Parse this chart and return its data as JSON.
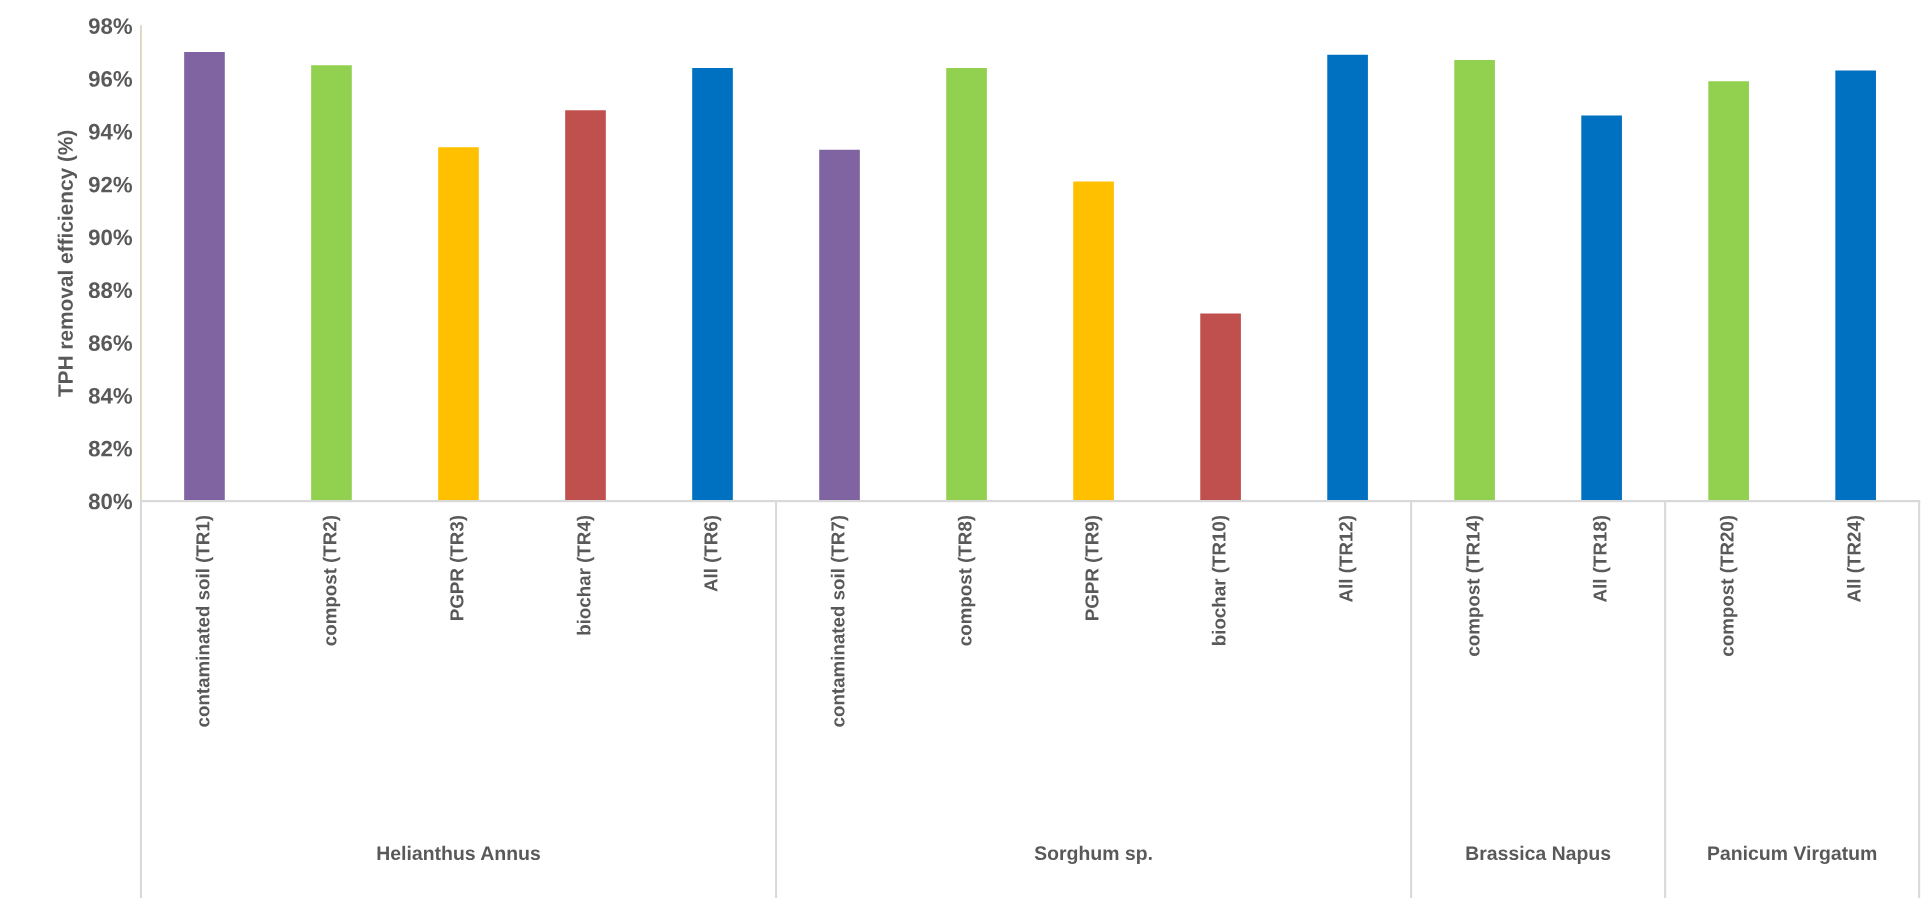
{
  "chart_data": {
    "type": "bar",
    "ylabel": "TPH removal efficiency (%)",
    "categories": [
      "contaminated soil (TR1)",
      "compost (TR2)",
      "PGPR (TR3)",
      "biochar (TR4)",
      "All (TR6)",
      "contaminated soil (TR7)",
      "compost (TR8)",
      "PGPR (TR9)",
      "biochar (TR10)",
      "All (TR12)",
      "compost (TR14)",
      "All (TR18)",
      "compost (TR20)",
      "All (TR24)"
    ],
    "values": [
      97.0,
      96.5,
      93.4,
      94.8,
      96.4,
      93.3,
      96.4,
      92.1,
      87.1,
      96.9,
      96.7,
      94.6,
      95.9,
      96.3
    ],
    "colors": [
      "#8064a2",
      "#92d050",
      "#ffc000",
      "#c0504d",
      "#0070c0",
      "#8064a2",
      "#92d050",
      "#ffc000",
      "#c0504d",
      "#0070c0",
      "#92d050",
      "#0070c0",
      "#92d050",
      "#0070c0"
    ],
    "annotations": [
      "Helianthus Annus",
      "Sorghum sp.",
      "Brassica Napus",
      "Panicum Virgatum"
    ],
    "ylim": [
      80,
      98
    ],
    "yticks": [
      {
        "value": 80,
        "label": "80%"
      },
      {
        "value": 82,
        "label": "82%"
      },
      {
        "value": 84,
        "label": "84%"
      },
      {
        "value": 86,
        "label": "86%"
      },
      {
        "value": 88,
        "label": "88%"
      },
      {
        "value": 90,
        "label": "90%"
      },
      {
        "value": 92,
        "label": "92%"
      },
      {
        "value": 94,
        "label": "94%"
      },
      {
        "value": 96,
        "label": "96%"
      },
      {
        "value": 98,
        "label": "98%"
      }
    ],
    "grid": false,
    "legend": false
  }
}
